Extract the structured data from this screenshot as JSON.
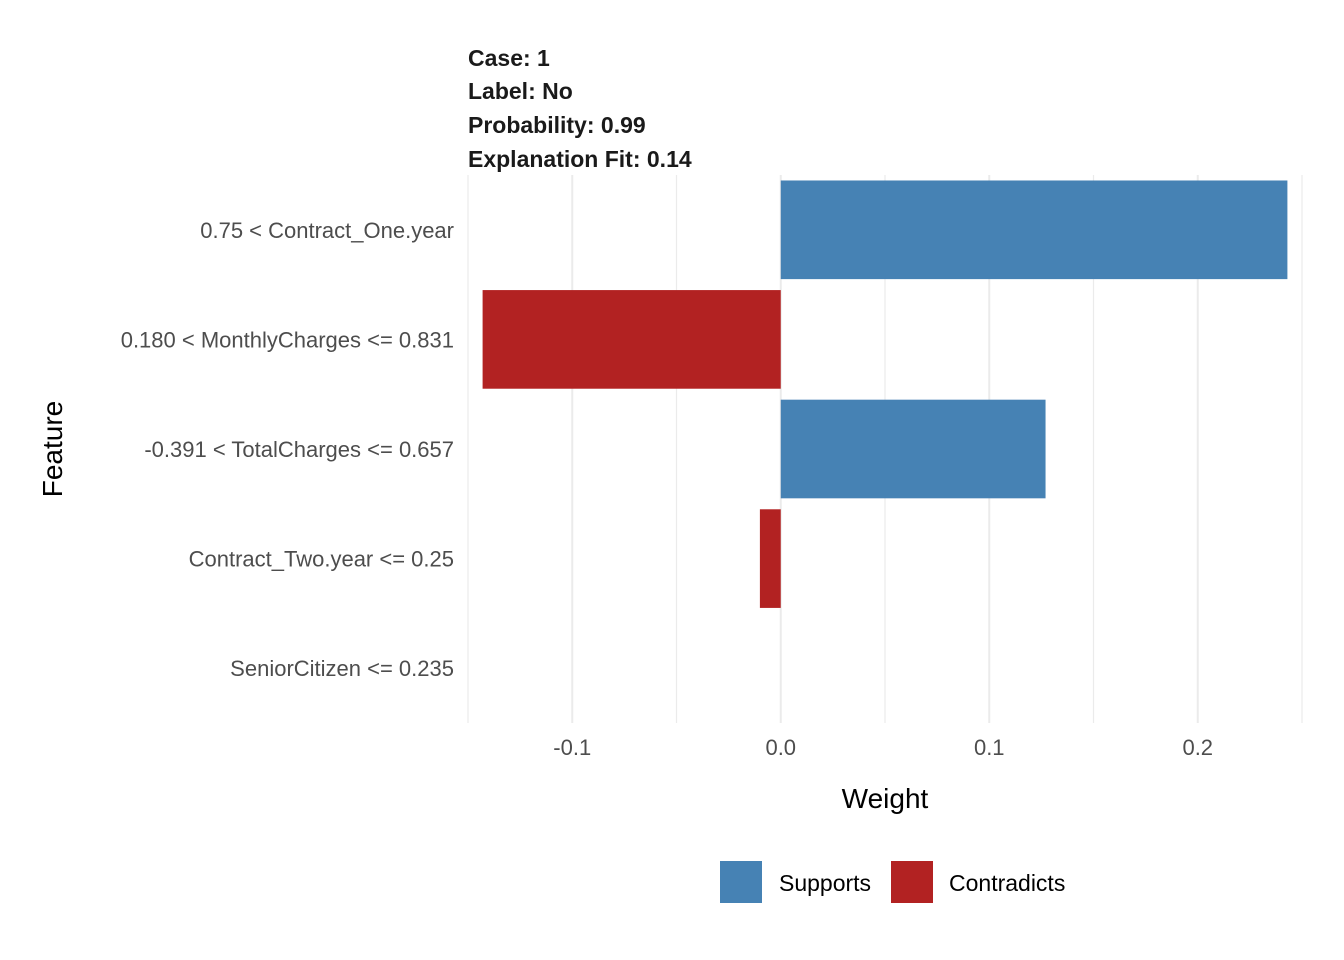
{
  "chart_data": {
    "type": "bar",
    "orientation": "horizontal",
    "title_lines": [
      "Case: 1",
      "Label: No",
      "Probability: 0.99",
      "Explanation Fit: 0.14"
    ],
    "xlabel": "Weight",
    "ylabel": "Feature",
    "xlim": [
      -0.15,
      0.25
    ],
    "xticks": [
      -0.1,
      0.0,
      0.1,
      0.2
    ],
    "xtick_labels": [
      "-0.1",
      "0.0",
      "0.1",
      "0.2"
    ],
    "grid": true,
    "legend_position": "bottom",
    "categories": [
      "0.75 < Contract_One.year",
      "0.180 < MonthlyCharges <= 0.831",
      "-0.391 < TotalCharges <= 0.657",
      "Contract_Two.year <= 0.25",
      "SeniorCitizen <= 0.235"
    ],
    "values": [
      0.243,
      -0.143,
      0.127,
      -0.01,
      0.0
    ],
    "bar_groups": [
      "Supports",
      "Contradicts",
      "Supports",
      "Contradicts",
      "Supports"
    ],
    "series": [
      {
        "name": "Supports",
        "color": "#4682B4"
      },
      {
        "name": "Contradicts",
        "color": "#B22222"
      }
    ]
  }
}
